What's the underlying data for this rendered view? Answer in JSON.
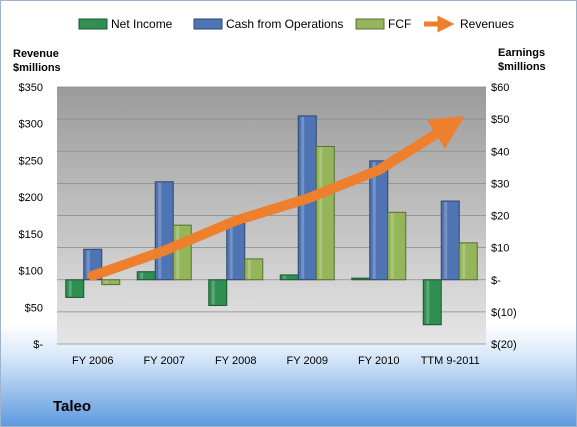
{
  "company": "Taleo",
  "chart_data": {
    "type": "bar",
    "categories": [
      "FY 2006",
      "FY 2007",
      "FY 2008",
      "FY 2009",
      "FY 2010",
      "TTM 9-2011"
    ],
    "left_axis": {
      "title_line1": "Revenue",
      "title_line2": "$millions",
      "ticks": [
        "$-",
        "$50",
        "$100",
        "$150",
        "$200",
        "$250",
        "$300",
        "$350"
      ],
      "range": [
        0,
        350
      ]
    },
    "right_axis": {
      "title_line1": "Earnings",
      "title_line2": "$millions",
      "ticks": [
        "$(20)",
        "$(10)",
        "$-",
        "$10",
        "$20",
        "$30",
        "$40",
        "$50",
        "$60"
      ],
      "range": [
        -20,
        60
      ]
    },
    "series": [
      {
        "name": "Net Income",
        "axis": "right",
        "kind": "bar",
        "color": "#2f8f52",
        "values": [
          -5.5,
          2.5,
          -8,
          1.5,
          0.5,
          -14
        ]
      },
      {
        "name": "Cash from Operations",
        "axis": "right",
        "kind": "bar",
        "color": "#4f74b4",
        "values": [
          9.5,
          30.5,
          17.5,
          51,
          37,
          24.5
        ]
      },
      {
        "name": "FCF",
        "axis": "right",
        "kind": "bar",
        "color": "#94b55a",
        "values": [
          -1.5,
          17,
          6.5,
          41.5,
          21,
          11.5
        ]
      },
      {
        "name": "Revenues",
        "axis": "left",
        "kind": "line",
        "color": "#ee7f2d",
        "values": [
          93,
          127,
          168,
          198,
          237,
          298
        ]
      }
    ],
    "grid": true,
    "legend": "top"
  }
}
